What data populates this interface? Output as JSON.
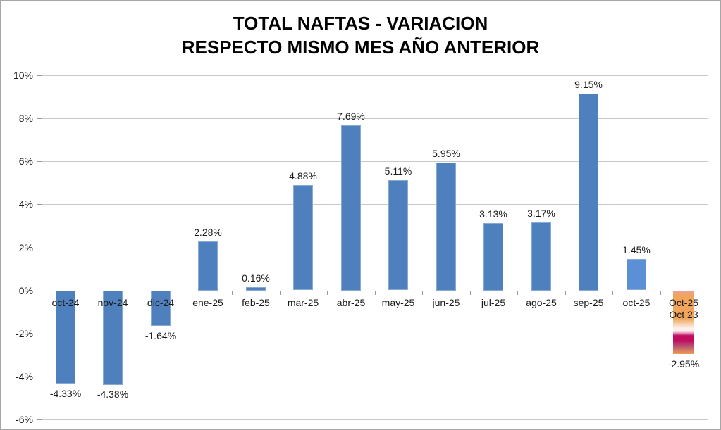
{
  "title": {
    "line1": "TOTAL NAFTAS - VARIACION",
    "line2": "RESPECTO MISMO MES AÑO ANTERIOR"
  },
  "chart_data": {
    "type": "bar",
    "title": "TOTAL NAFTAS - VARIACION RESPECTO MISMO MES AÑO ANTERIOR",
    "xlabel": "",
    "ylabel": "",
    "ylim": [
      -6,
      10
    ],
    "grid": true,
    "legend": false,
    "yticks": [
      {
        "value": 10,
        "label": "10%"
      },
      {
        "value": 8,
        "label": "8%"
      },
      {
        "value": 6,
        "label": "6%"
      },
      {
        "value": 4,
        "label": "4%"
      },
      {
        "value": 2,
        "label": "2%"
      },
      {
        "value": 0,
        "label": "0%"
      },
      {
        "value": -2,
        "label": "-2%"
      },
      {
        "value": -4,
        "label": "-4%"
      },
      {
        "value": -6,
        "label": "-6%"
      }
    ],
    "categories": [
      "oct-24",
      "nov-24",
      "dic-24",
      "ene-25",
      "feb-25",
      "mar-25",
      "abr-25",
      "may-25",
      "jun-25",
      "jul-25",
      "ago-25",
      "sep-25",
      "oct-25",
      "Oct-25\nOct 23"
    ],
    "values": [
      -4.33,
      -4.38,
      -1.64,
      2.28,
      0.16,
      4.88,
      7.69,
      5.11,
      5.95,
      3.13,
      3.17,
      9.15,
      1.45,
      -2.95
    ],
    "data_labels": [
      "-4.33%",
      "-4.38%",
      "-1.64%",
      "2.28%",
      "0.16%",
      "4.88%",
      "7.69%",
      "5.11%",
      "5.95%",
      "3.13%",
      "3.17%",
      "9.15%",
      "1.45%",
      "-2.95%"
    ],
    "bar_styles": [
      "blue",
      "blue",
      "blue",
      "blue",
      "blue",
      "blue",
      "blue",
      "blue",
      "blue",
      "blue",
      "blue",
      "blue",
      "lightblue",
      "gradient"
    ]
  },
  "colors": {
    "bar_blue": "#4d80bd",
    "bar_light_blue": "#5b90d6",
    "bar_border": "#86aad5",
    "gradient_top_pink": "#ec9fa4",
    "gradient_orange": "#f0a55a",
    "gradient_pale": "#fcefed",
    "gradient_magenta": "#c10c60",
    "gradient_fade": "#b85572",
    "gradient_bottom_orange": "#ec9e55",
    "gridline": "#c9c9c9",
    "axis": "#9a9a9a",
    "text": "#1a1a1a",
    "title_text": "#000000",
    "border": "#a6a6a6"
  }
}
